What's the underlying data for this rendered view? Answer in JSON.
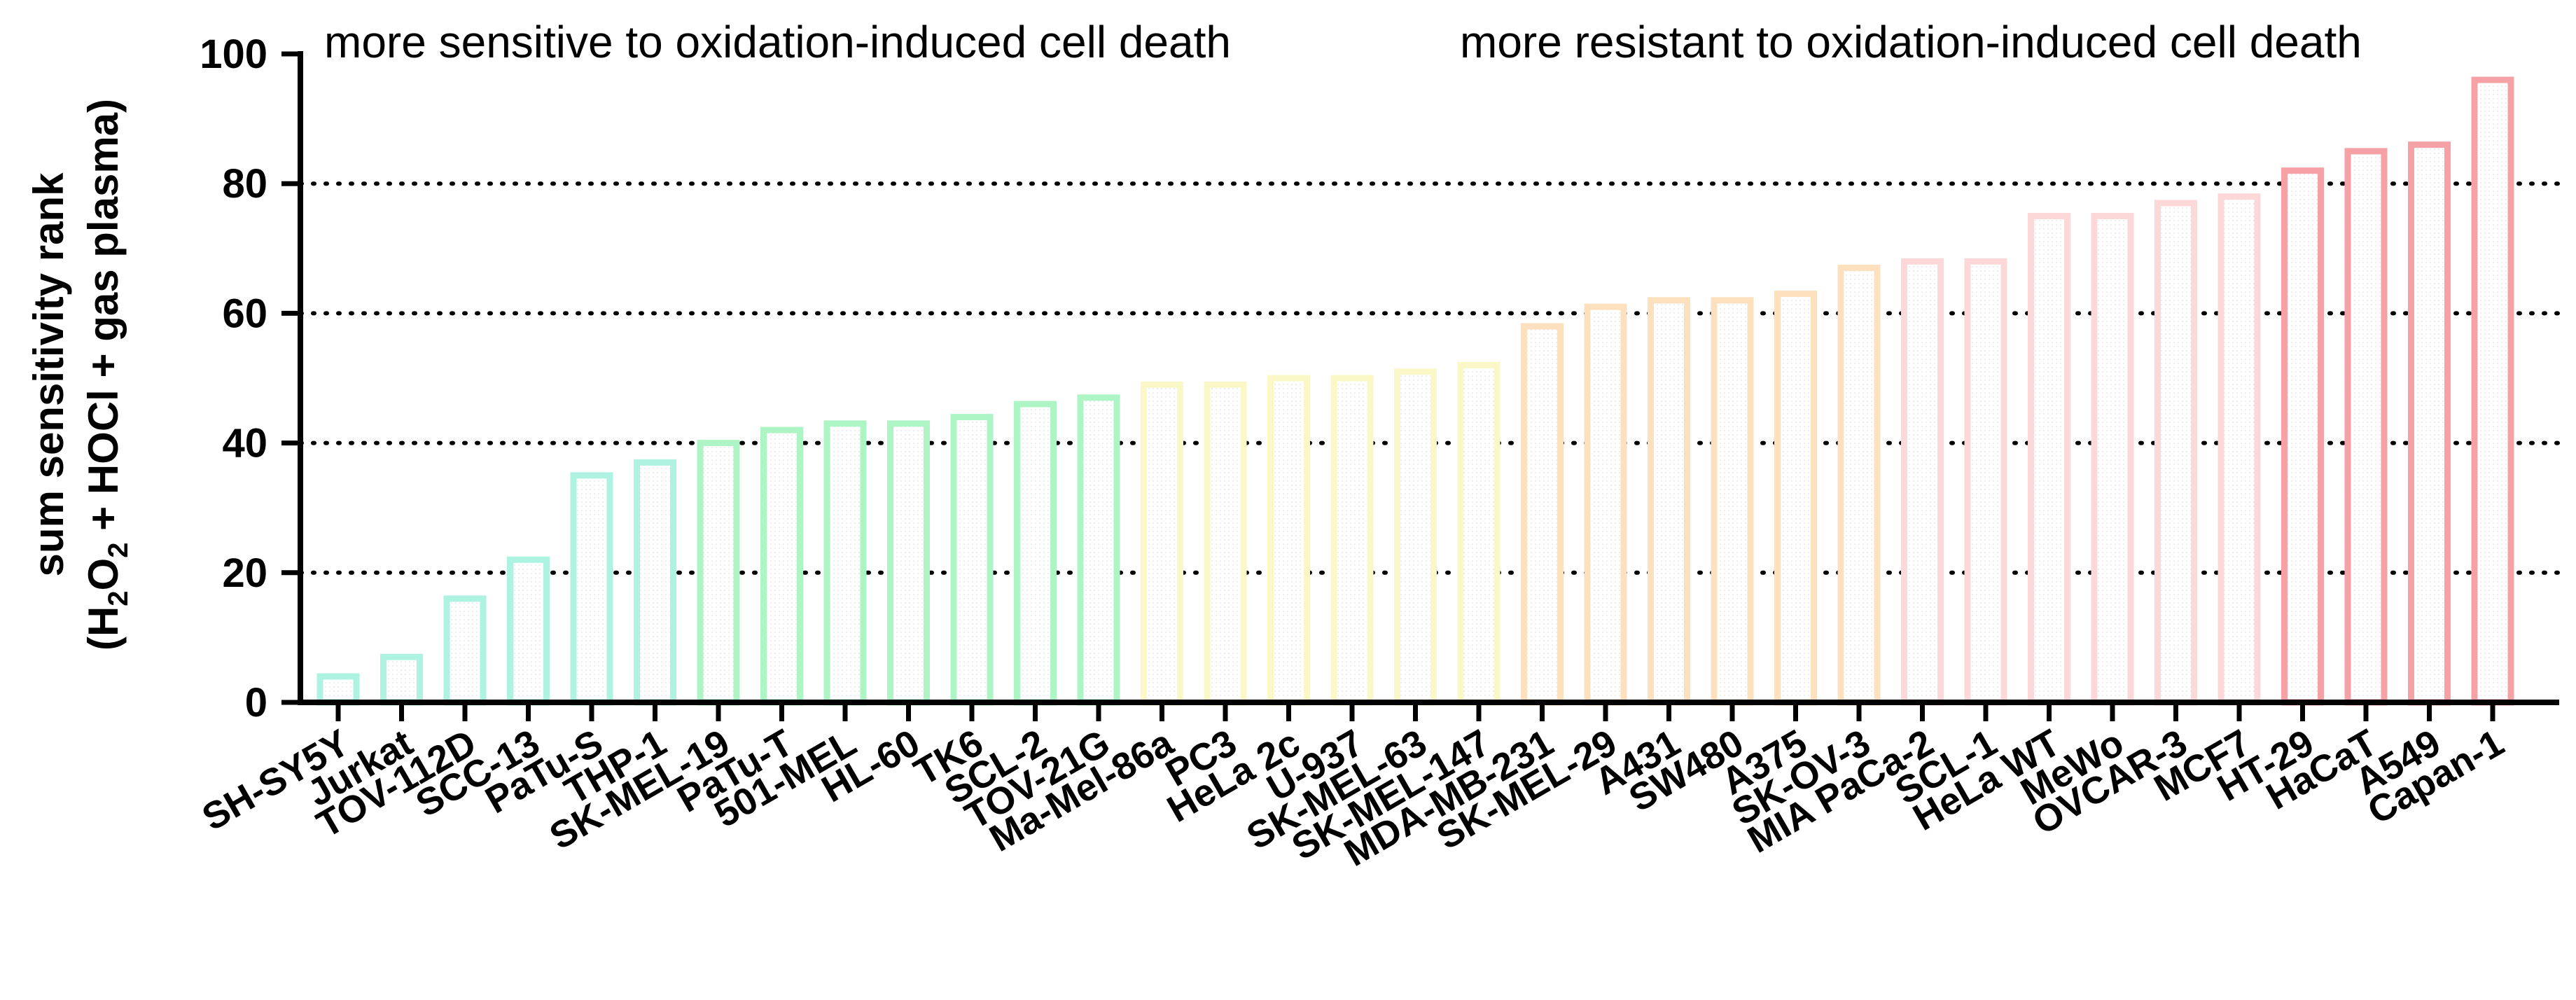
{
  "chart_data": {
    "type": "bar",
    "title": "",
    "xlabel": "",
    "ylabel_line1": "sum sensitivity rank",
    "ylabel_line2_parts": [
      "(H",
      "2",
      "O",
      "2",
      " + HOCl + gas plasma)"
    ],
    "ylim": [
      0,
      100
    ],
    "yticks": [
      "0",
      "20",
      "40",
      "60",
      "80",
      "100"
    ],
    "gridlines": [
      20,
      40,
      60,
      80
    ],
    "annotations": {
      "left": "more sensitive to oxidation-induced cell death",
      "right": "more resistant to oxidation-induced cell death"
    },
    "categories": [
      "SH-SY5Y",
      "Jurkat",
      "TOV-112D",
      "SCC-13",
      "PaTu-S",
      "THP-1",
      "SK-MEL-19",
      "PaTu-T",
      "501-MEL",
      "HL-60",
      "TK6",
      "SCL-2",
      "TOV-21G",
      "Ma-Mel-86a",
      "PC3",
      "HeLa 2c",
      "U-937",
      "SK-MEL-63",
      "SK-MEL-147",
      "MDA-MB-231",
      "SK-MEL-29",
      "A431",
      "SW480",
      "A375",
      "SK-OV-3",
      "MIA PaCa-2",
      "SCL-1",
      "HeLa WT",
      "MeWo",
      "OVCAR-3",
      "MCF7",
      "HT-29",
      "HaCaT",
      "A549",
      "Capan-1"
    ],
    "values": [
      4,
      7,
      16,
      22,
      35,
      37,
      40,
      42,
      43,
      43,
      44,
      46,
      47,
      49,
      49,
      50,
      50,
      51,
      52,
      58,
      61,
      62,
      62,
      63,
      67,
      68,
      68,
      75,
      75,
      77,
      78,
      82,
      85,
      86,
      96
    ],
    "colors": [
      "#aef2e2",
      "#aef2e2",
      "#aef2e2",
      "#aef2e2",
      "#aef2e2",
      "#aef2e2",
      "#aef5c6",
      "#aef5c6",
      "#aef5c6",
      "#aef5c6",
      "#aef5c6",
      "#aef5c6",
      "#aef5c6",
      "#fbf8c8",
      "#fbf8c8",
      "#fbf8c8",
      "#fbf8c8",
      "#fbf8c8",
      "#fbf8c8",
      "#fde0bd",
      "#fde0bd",
      "#fde0bd",
      "#fde0bd",
      "#fde0bd",
      "#fde0bd",
      "#fcd8d8",
      "#fcd8d8",
      "#fcd8d8",
      "#fcd8d8",
      "#fcd8d8",
      "#fcd8d8",
      "#f6a1a6",
      "#f6a1a6",
      "#f6a1a6",
      "#f6a1a6"
    ]
  }
}
